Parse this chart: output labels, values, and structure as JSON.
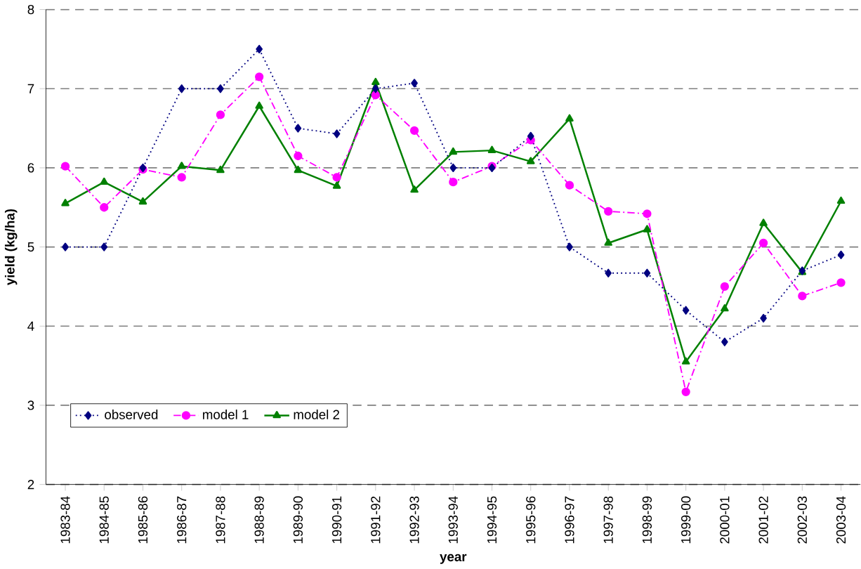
{
  "chart_data": {
    "type": "line",
    "xlabel": "year",
    "ylabel": "yield (kg/ha)",
    "categories": [
      "1983-84",
      "1984-85",
      "1985-86",
      "1986-87",
      "1987-88",
      "1988-89",
      "1989-90",
      "1990-91",
      "1991-92",
      "1992-93",
      "1993-94",
      "1994-95",
      "1995-96",
      "1996-97",
      "1997-98",
      "1998-99",
      "1999-00",
      "2000-01",
      "2001-02",
      "2002-03",
      "2003-04"
    ],
    "series": [
      {
        "name": "observed",
        "color": "#000080",
        "marker": "diamond",
        "line_style": "dotted",
        "values": [
          5.0,
          5.0,
          6.0,
          7.0,
          7.0,
          7.5,
          6.5,
          6.43,
          7.0,
          7.07,
          6.0,
          6.0,
          6.4,
          5.0,
          4.67,
          4.67,
          4.2,
          3.8,
          4.1,
          4.7,
          4.9
        ]
      },
      {
        "name": "model 1",
        "color": "#ff00ff",
        "marker": "circle",
        "line_style": "dashed",
        "values": [
          6.02,
          5.5,
          5.98,
          5.88,
          6.67,
          7.15,
          6.15,
          5.88,
          6.92,
          6.47,
          5.82,
          6.02,
          6.35,
          5.78,
          5.45,
          5.42,
          3.17,
          4.5,
          5.05,
          4.38,
          4.55
        ]
      },
      {
        "name": "model 2",
        "color": "#008000",
        "marker": "triangle",
        "line_style": "solid",
        "values": [
          5.55,
          5.82,
          5.57,
          6.02,
          5.97,
          6.78,
          5.97,
          5.77,
          7.08,
          5.72,
          6.2,
          6.22,
          6.08,
          6.62,
          5.05,
          5.22,
          3.55,
          4.22,
          5.3,
          4.68,
          5.58
        ]
      }
    ],
    "ylim": [
      2,
      8
    ],
    "yticks": [
      2,
      3,
      4,
      5,
      6,
      7,
      8
    ],
    "grid": "y",
    "legend": "bottom left"
  }
}
